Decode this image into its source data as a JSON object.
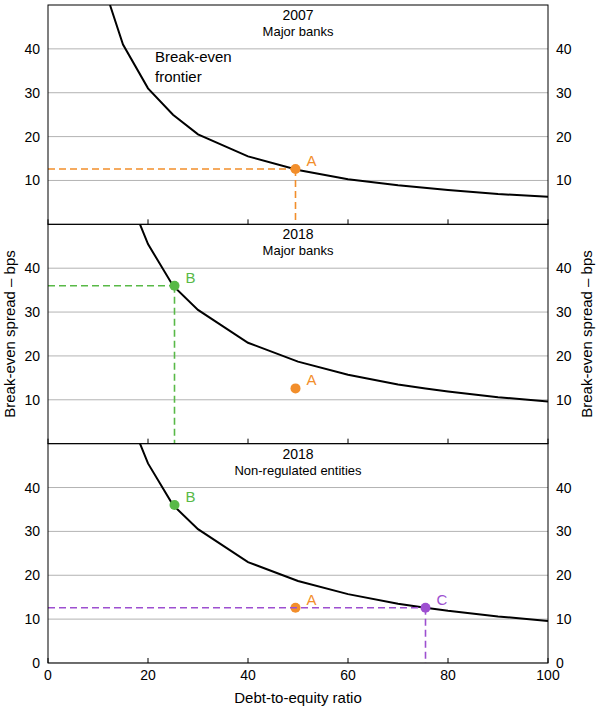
{
  "chart_data": [
    {
      "type": "line",
      "title": "2007",
      "subtitle": "Major banks",
      "annotation": [
        "Break-even",
        "frontier"
      ],
      "xlim": [
        0,
        100
      ],
      "xticks": [
        0,
        20,
        40,
        60,
        80,
        100
      ],
      "ylim": [
        0,
        50
      ],
      "yticks": [
        10,
        20,
        30,
        40
      ],
      "grid": true,
      "tick_labels": "y",
      "series": [
        {
          "type": "line",
          "color": "#000000",
          "line_style": "solid",
          "x": [
            12.4,
            15,
            20,
            25,
            30,
            40,
            50,
            60,
            70,
            80,
            90,
            100
          ],
          "values": [
            50,
            41,
            31,
            25,
            20.5,
            15.5,
            12.4,
            10.3,
            8.9,
            7.8,
            6.9,
            6.3
          ]
        },
        {
          "type": "scatter",
          "name": "A",
          "color": "#f28e2b",
          "marker": "circle",
          "line_style": "dashed",
          "x": [
            49.5
          ],
          "values": [
            12.6
          ]
        }
      ]
    },
    {
      "type": "line",
      "title": "2018",
      "subtitle": "Major banks",
      "ylabel": "Break-even spread – bps",
      "xlim": [
        0,
        100
      ],
      "xticks": [
        0,
        20,
        40,
        60,
        80,
        100
      ],
      "ylim": [
        0,
        50
      ],
      "yticks": [
        10,
        20,
        30,
        40
      ],
      "grid": true,
      "tick_labels": "y",
      "series": [
        {
          "type": "line",
          "color": "#000000",
          "line_style": "solid",
          "x": [
            18.4,
            20,
            25,
            30,
            40,
            50,
            60,
            70,
            75.5,
            80,
            90,
            100
          ],
          "values": [
            50,
            45.5,
            36,
            30.5,
            23,
            18.7,
            15.7,
            13.5,
            12.6,
            11.9,
            10.6,
            9.6
          ]
        },
        {
          "type": "scatter",
          "name": "B",
          "color": "#58b947",
          "marker": "circle",
          "line_style": "dashed",
          "x": [
            25.3
          ],
          "values": [
            36
          ]
        },
        {
          "type": "scatter",
          "name": "A",
          "color": "#f28e2b",
          "marker": "circle",
          "x": [
            49.5
          ],
          "values": [
            12.6
          ]
        }
      ]
    },
    {
      "type": "line",
      "title": "2018",
      "subtitle": "Non-regulated entities",
      "xlabel": "Debt-to-equity ratio",
      "xlim": [
        0,
        100
      ],
      "xticks": [
        0,
        20,
        40,
        60,
        80,
        100
      ],
      "ylim": [
        0,
        50
      ],
      "yticks": [
        0,
        10,
        20,
        30,
        40
      ],
      "grid": true,
      "series": [
        {
          "type": "line",
          "color": "#000000",
          "line_style": "solid",
          "x": [
            18.4,
            20,
            25,
            30,
            40,
            50,
            60,
            70,
            75.5,
            80,
            90,
            100
          ],
          "values": [
            50,
            45.5,
            36,
            30.5,
            23,
            18.7,
            15.7,
            13.5,
            12.6,
            11.9,
            10.6,
            9.6
          ]
        },
        {
          "type": "scatter",
          "name": "B",
          "color": "#58b947",
          "marker": "circle",
          "x": [
            25.3
          ],
          "values": [
            36
          ]
        },
        {
          "type": "scatter",
          "name": "A",
          "color": "#f28e2b",
          "marker": "circle",
          "x": [
            49.5
          ],
          "values": [
            12.6
          ]
        },
        {
          "type": "scatter",
          "name": "C",
          "color": "#9d4fd0",
          "marker": "circle",
          "line_style": "dashed",
          "x": [
            75.5
          ],
          "values": [
            12.6
          ]
        }
      ]
    }
  ]
}
